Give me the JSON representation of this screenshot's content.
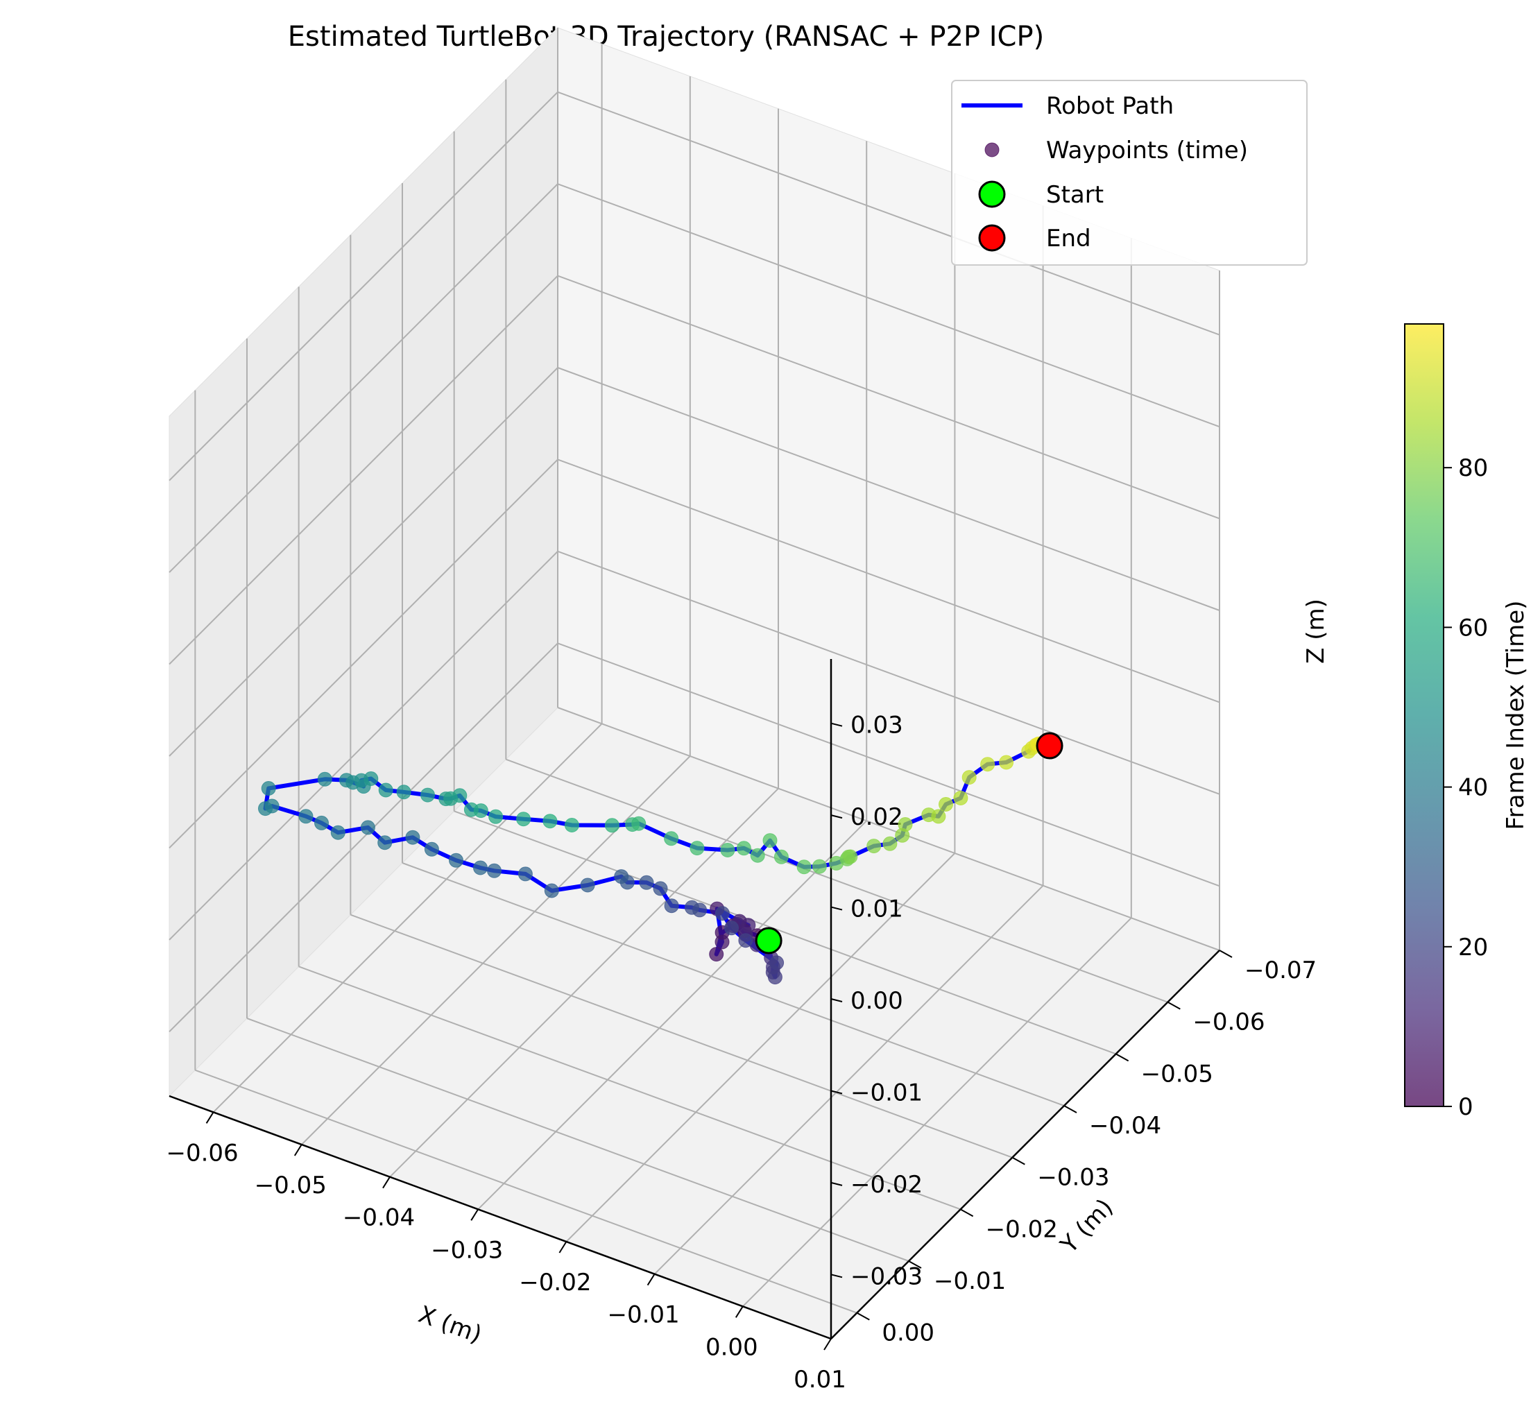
{
  "chart_data": {
    "type": "line",
    "title": "Estimated TurtleBot 3D Trajectory (RANSAC + P2P ICP)",
    "xlabel": "X (m)",
    "ylabel": "Y (m)",
    "zlabel": "Z (m)",
    "xlim": [
      -0.065,
      0.01
    ],
    "ylim": [
      -0.07,
      0.005
    ],
    "zlim": [
      -0.037,
      0.037
    ],
    "x_ticks": [
      "−0.06",
      "−0.05",
      "−0.04",
      "−0.03",
      "−0.02",
      "−0.01",
      "0.00",
      "0.01"
    ],
    "y_ticks": [
      "0.00",
      "−0.01",
      "−0.02",
      "−0.03",
      "−0.04",
      "−0.05",
      "−0.06",
      "−0.07"
    ],
    "z_ticks": [
      "0.03",
      "0.02",
      "0.01",
      "0.00",
      "−0.01",
      "−0.02",
      "−0.03"
    ],
    "grid": true,
    "legend_position": "top-right",
    "legend": [
      "Robot Path",
      "Waypoints (time)",
      "Start",
      "End"
    ],
    "colorbar": {
      "label": "Frame Index (Time)",
      "ticks": [
        "0",
        "20",
        "40",
        "60",
        "80"
      ],
      "range": [
        0,
        98
      ],
      "colormap": "viridis"
    },
    "path_color": "#0000ff",
    "start_color": "#00ff00",
    "end_color": "#ff0000",
    "series": [
      {
        "name": "Robot Path",
        "points": [
          [
            0.0,
            0.0,
            0.0
          ],
          [
            -0.0003,
            0.0017,
            0.0014
          ],
          [
            -0.0007,
            0.0035,
            0.0028
          ],
          [
            -0.001,
            0.0052,
            0.0042
          ],
          [
            -0.0011,
            0.0071,
            0.0045
          ],
          [
            -0.001,
            0.0084,
            0.0029
          ],
          [
            -0.0017,
            0.0061,
            0.0027
          ],
          [
            -0.0038,
            0.0035,
            0.0041
          ],
          [
            -0.0022,
            0.0019,
            0.0024
          ],
          [
            -0.0016,
            0.0012,
            0.0018
          ],
          [
            -0.0022,
            0.0023,
            0.0023
          ],
          [
            -0.0015,
            0.0019,
            0.0012
          ],
          [
            -0.0004,
            0.0016,
            0.0003
          ],
          [
            0.0003,
            0.0005,
            -0.0003
          ],
          [
            0.0011,
            0.0014,
            -0.0007
          ],
          [
            0.0015,
            0.0017,
            -0.0014
          ],
          [
            0.0016,
            0.0019,
            -0.0018
          ],
          [
            0.0012,
            0.0008,
            -0.0031
          ],
          [
            -0.0001,
            -0.0017,
            -0.0034
          ],
          [
            -0.0049,
            -0.0039,
            -0.0039
          ],
          [
            -0.0068,
            -0.0044,
            -0.0035
          ],
          [
            -0.0083,
            -0.0052,
            -0.0029
          ],
          [
            -0.0107,
            -0.0049,
            -0.0032
          ],
          [
            -0.0117,
            -0.0051,
            -0.0034
          ],
          [
            -0.0143,
            -0.0056,
            -0.0044
          ],
          [
            -0.0165,
            -0.0072,
            -0.0042
          ],
          [
            -0.0186,
            -0.0081,
            -0.0048
          ],
          [
            -0.0209,
            -0.0083,
            -0.0057
          ],
          [
            -0.0221,
            -0.0092,
            -0.006
          ],
          [
            -0.0251,
            -0.0078,
            -0.0072
          ],
          [
            -0.028,
            -0.0058,
            -0.0077
          ],
          [
            -0.0308,
            -0.0055,
            -0.0067
          ],
          [
            -0.0338,
            -0.0046,
            -0.0069
          ],
          [
            -0.0352,
            -0.0043,
            -0.0069
          ],
          [
            -0.0376,
            -0.0037,
            -0.0066
          ],
          [
            -0.0413,
            -0.0053,
            -0.0076
          ],
          [
            -0.0444,
            -0.0069,
            -0.0083
          ],
          [
            -0.0475,
            -0.0068,
            -0.0099
          ],
          [
            -0.05,
            -0.0078,
            -0.0097
          ],
          [
            -0.0535,
            -0.008,
            -0.0116
          ],
          [
            -0.0562,
            -0.0094,
            -0.0123
          ],
          [
            -0.0582,
            -0.0098,
            -0.0125
          ],
          [
            -0.0624,
            -0.0104,
            -0.0132
          ],
          [
            -0.0635,
            -0.011,
            -0.0142
          ],
          [
            -0.0646,
            -0.0135,
            -0.0138
          ],
          [
            -0.0594,
            -0.0155,
            -0.0121
          ],
          [
            -0.0573,
            -0.0161,
            -0.0118
          ],
          [
            -0.0568,
            -0.0165,
            -0.0121
          ],
          [
            -0.0556,
            -0.0165,
            -0.0121
          ],
          [
            -0.0565,
            -0.0176,
            -0.0124
          ],
          [
            -0.0557,
            -0.0181,
            -0.0122
          ],
          [
            -0.0539,
            -0.0179,
            -0.0127
          ],
          [
            -0.0521,
            -0.0183,
            -0.0125
          ],
          [
            -0.0501,
            -0.0195,
            -0.0128
          ],
          [
            -0.0485,
            -0.0203,
            -0.0131
          ],
          [
            -0.0482,
            -0.0207,
            -0.0132
          ],
          [
            -0.0474,
            -0.0211,
            -0.0128
          ],
          [
            -0.0458,
            -0.0206,
            -0.0135
          ],
          [
            -0.045,
            -0.0211,
            -0.0136
          ],
          [
            -0.0435,
            -0.0214,
            -0.0139
          ],
          [
            -0.041,
            -0.0225,
            -0.0139
          ],
          [
            -0.0384,
            -0.0232,
            -0.0136
          ],
          [
            -0.0361,
            -0.0235,
            -0.0134
          ],
          [
            -0.0326,
            -0.0253,
            -0.0132
          ],
          [
            -0.0303,
            -0.0253,
            -0.0123
          ],
          [
            -0.0297,
            -0.0255,
            -0.0121
          ],
          [
            -0.0266,
            -0.0265,
            -0.0132
          ],
          [
            -0.0242,
            -0.0274,
            -0.0139
          ],
          [
            -0.0215,
            -0.0287,
            -0.0139
          ],
          [
            -0.0203,
            -0.0298,
            -0.0139
          ],
          [
            -0.0191,
            -0.0304,
            -0.0146
          ],
          [
            -0.0184,
            -0.0316,
            -0.0134
          ],
          [
            -0.0177,
            -0.0326,
            -0.0155
          ],
          [
            -0.0156,
            -0.0334,
            -0.0163
          ],
          [
            -0.0142,
            -0.034,
            -0.0161
          ],
          [
            -0.013,
            -0.0352,
            -0.016
          ],
          [
            -0.0123,
            -0.0361,
            -0.0158
          ],
          [
            -0.0122,
            -0.0362,
            -0.0156
          ],
          [
            -0.012,
            -0.0362,
            -0.0155
          ],
          [
            -0.0101,
            -0.0375,
            -0.0144
          ],
          [
            -0.0088,
            -0.0384,
            -0.0142
          ],
          [
            -0.0074,
            -0.0384,
            -0.0128
          ],
          [
            -0.0073,
            -0.0388,
            -0.0118
          ],
          [
            -0.0057,
            -0.0406,
            -0.0112
          ],
          [
            -0.0043,
            -0.0401,
            -0.0106
          ],
          [
            -0.0037,
            -0.0405,
            -0.0093
          ],
          [
            -0.0026,
            -0.0415,
            -0.0088
          ],
          [
            -0.0024,
            -0.0428,
            -0.0072
          ],
          [
            -0.0012,
            -0.0443,
            -0.0062
          ],
          [
            0.0008,
            -0.0445,
            -0.0054
          ],
          [
            0.0025,
            -0.0459,
            -0.0044
          ],
          [
            0.0029,
            -0.0459,
            -0.0039
          ],
          [
            0.0032,
            -0.0461,
            -0.0036
          ],
          [
            0.0038,
            -0.0457,
            -0.003
          ],
          [
            0.0042,
            -0.0448,
            -0.0024
          ],
          [
            0.0051,
            -0.0452,
            -0.0023
          ],
          [
            0.0052,
            -0.0452,
            -0.0023
          ],
          [
            0.0053,
            -0.0452,
            -0.0024
          ]
        ]
      }
    ],
    "start_point": [
      0.0,
      0.0,
      0.0
    ],
    "end_point": [
      0.0053,
      -0.0452,
      -0.0024
    ]
  }
}
